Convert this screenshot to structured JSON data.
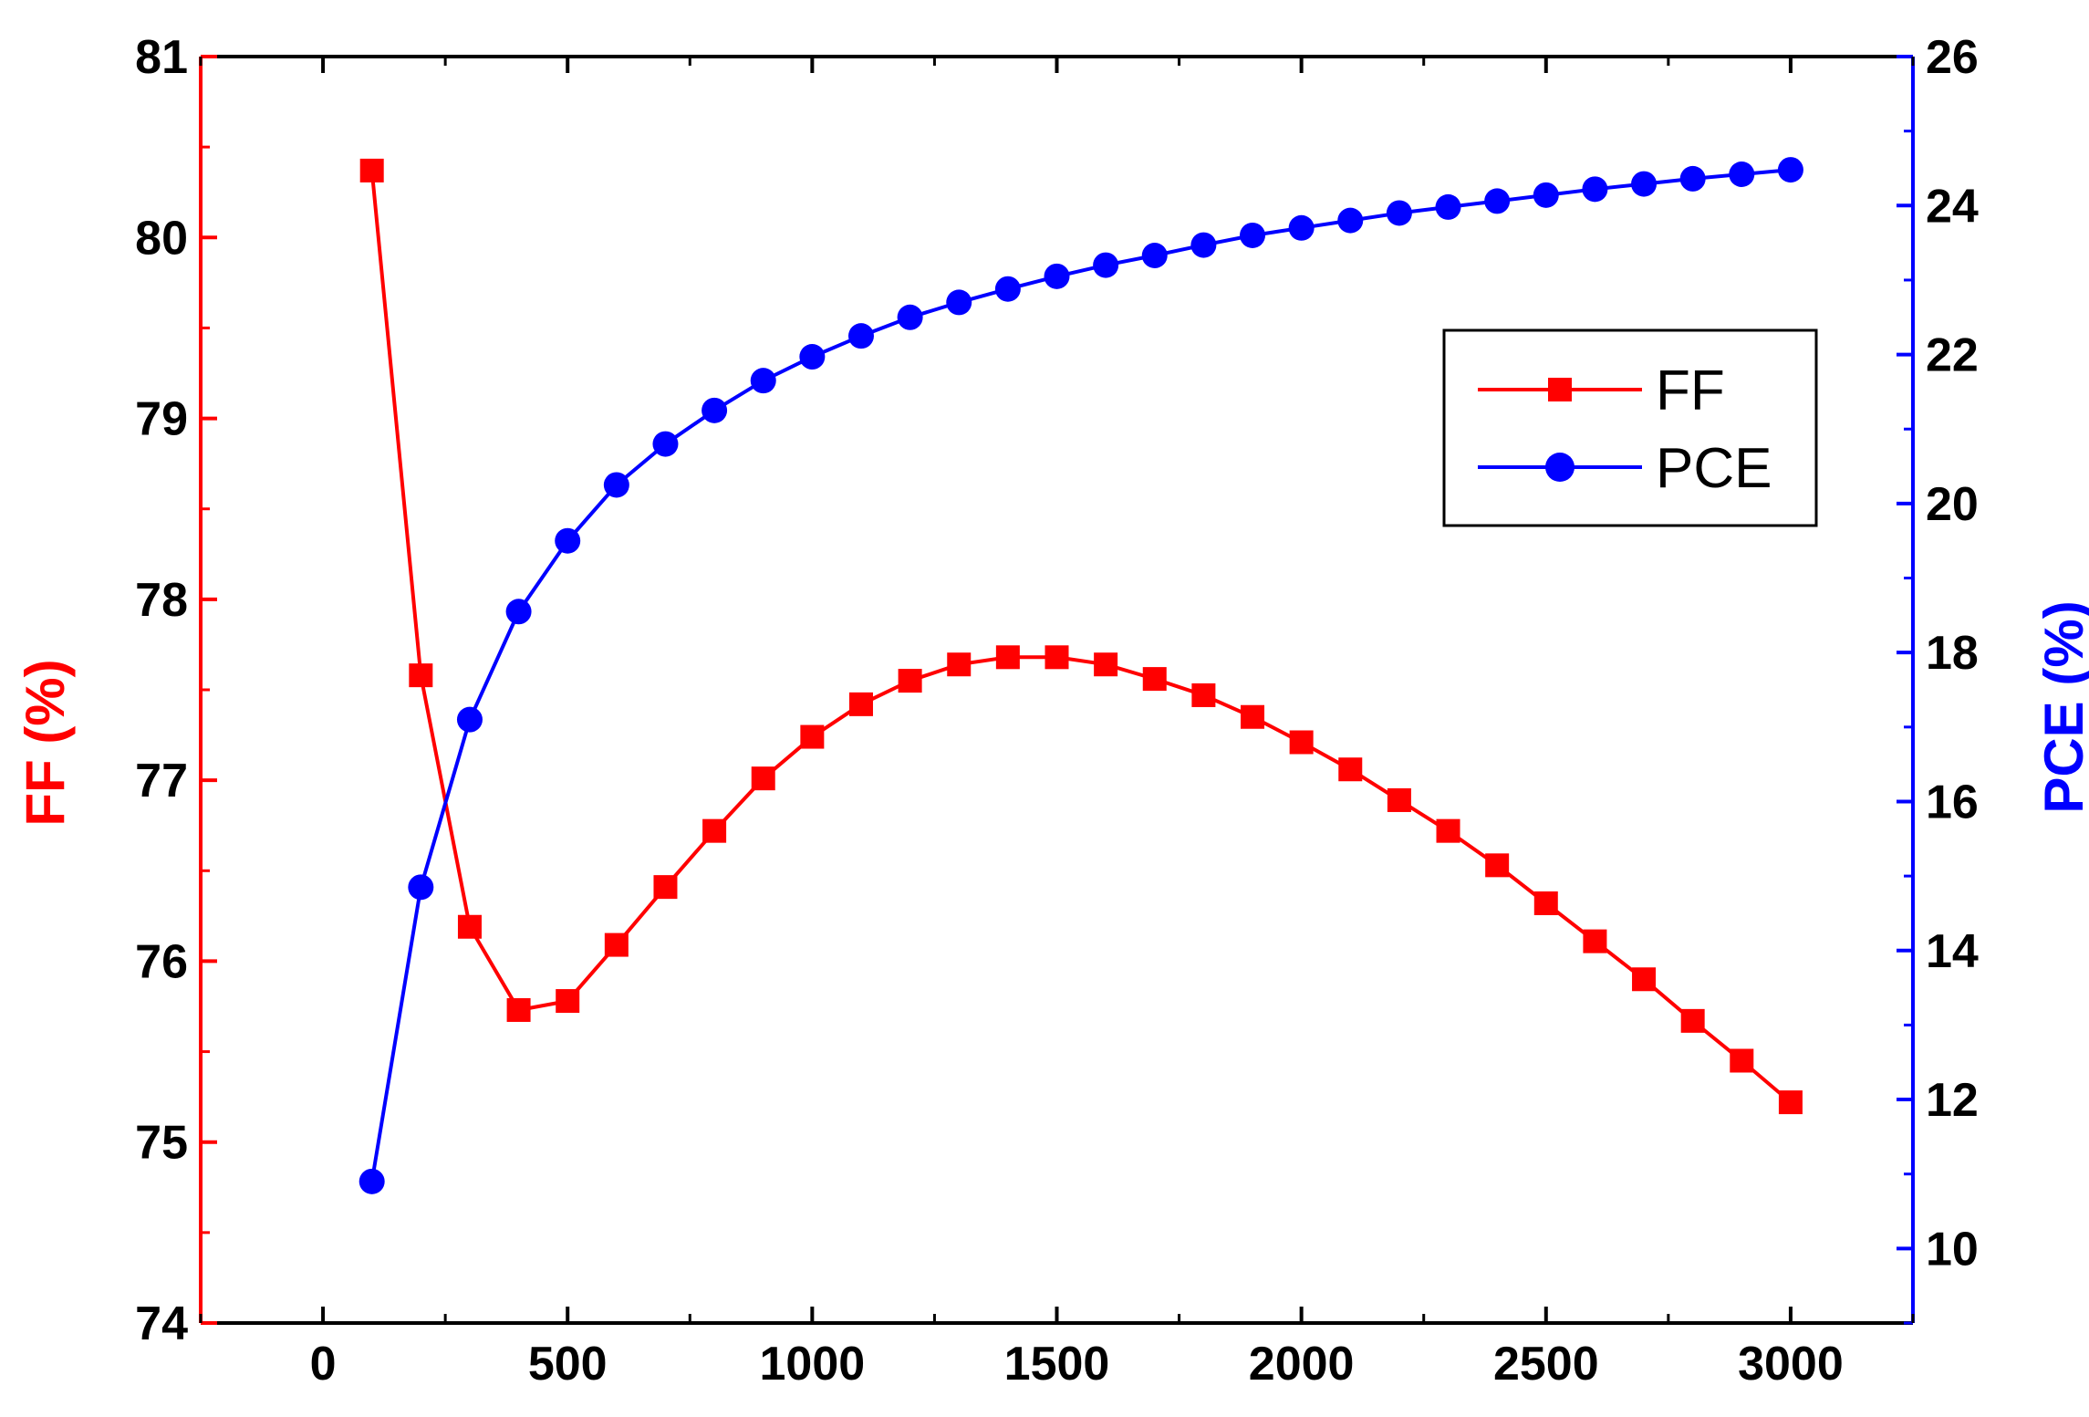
{
  "chart_data": {
    "type": "line",
    "title": "",
    "xlabel": "",
    "x": [
      100,
      200,
      300,
      400,
      500,
      600,
      700,
      800,
      900,
      1000,
      1100,
      1200,
      1300,
      1400,
      1500,
      1600,
      1700,
      1800,
      1900,
      2000,
      2100,
      2200,
      2300,
      2400,
      2500,
      2600,
      2700,
      2800,
      2900,
      3000
    ],
    "xlim": [
      -250,
      3250
    ],
    "xticks": [
      "0",
      "500",
      "1000",
      "1500",
      "2000",
      "2500",
      "3000"
    ],
    "left_axis": {
      "label": "FF (%)",
      "ylim": [
        74,
        81
      ],
      "ticks": [
        "74",
        "75",
        "76",
        "77",
        "78",
        "79",
        "80",
        "81"
      ],
      "color": "#ff0000"
    },
    "right_axis": {
      "label": "PCE (%)",
      "ylim": [
        9,
        26
      ],
      "ticks": [
        "10",
        "12",
        "14",
        "16",
        "18",
        "20",
        "22",
        "24",
        "26"
      ],
      "color": "#0000ff"
    },
    "series": [
      {
        "name": "FF",
        "axis": "left",
        "marker": "square",
        "color": "#ff0000",
        "values": [
          80.37,
          77.58,
          76.19,
          75.73,
          75.78,
          76.09,
          76.41,
          76.72,
          77.01,
          77.24,
          77.42,
          77.55,
          77.64,
          77.68,
          77.68,
          77.64,
          77.56,
          77.47,
          77.35,
          77.21,
          77.06,
          76.89,
          76.72,
          76.53,
          76.32,
          76.11,
          75.9,
          75.67,
          75.45,
          75.22
        ]
      },
      {
        "name": "PCE",
        "axis": "right",
        "marker": "circle",
        "color": "#0000ff",
        "values": [
          10.9,
          14.85,
          17.1,
          18.55,
          19.5,
          20.25,
          20.8,
          21.25,
          21.65,
          21.97,
          22.25,
          22.5,
          22.7,
          22.88,
          23.05,
          23.2,
          23.33,
          23.47,
          23.6,
          23.7,
          23.8,
          23.9,
          23.98,
          24.06,
          24.14,
          24.22,
          24.29,
          24.36,
          24.42,
          24.48
        ]
      }
    ],
    "legend": {
      "position": "top-right",
      "entries": [
        "FF",
        "PCE"
      ]
    }
  }
}
